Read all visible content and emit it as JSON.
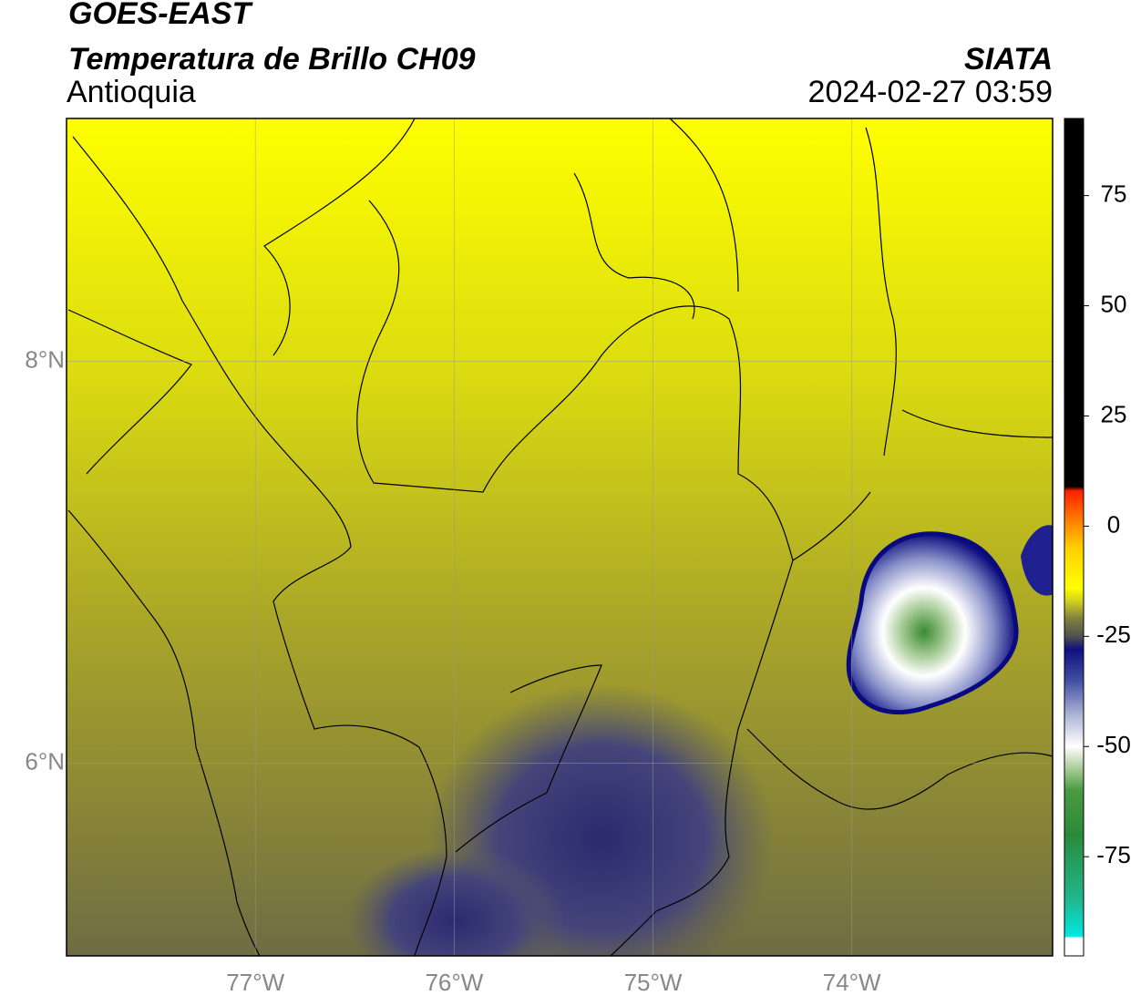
{
  "map": {
    "title": "GOES-EAST",
    "subtitle": "Temperatura de Brillo CH09",
    "region": "Antioquia",
    "source": "SIATA",
    "timestamp": "2024-02-27 03:59",
    "xlim": [
      -77.95,
      -72.99
    ],
    "ylim": [
      5.04,
      9.21
    ],
    "xticks": [
      {
        "value": -77,
        "label": "77°W"
      },
      {
        "value": -76,
        "label": "76°W"
      },
      {
        "value": -75,
        "label": "75°W"
      },
      {
        "value": -74,
        "label": "74°W"
      }
    ],
    "yticks": [
      {
        "value": 6,
        "label": "6°N"
      },
      {
        "value": 8,
        "label": "8°N"
      }
    ],
    "grid": true,
    "colorbar": {
      "lim": [
        -97.5,
        92.5
      ],
      "ticks": [
        -75,
        -50,
        -25,
        0,
        25,
        50,
        75
      ],
      "stops": [
        {
          "value": -97.5,
          "color": "#ffffff"
        },
        {
          "value": -93.5,
          "color": "#ffffff"
        },
        {
          "value": -93,
          "color": "#00e8e0"
        },
        {
          "value": -85,
          "color": "#20b890"
        },
        {
          "value": -70,
          "color": "#2a8a3a"
        },
        {
          "value": -60,
          "color": "#4a9a40"
        },
        {
          "value": -55,
          "color": "#a8cc98"
        },
        {
          "value": -50,
          "color": "#ffffff"
        },
        {
          "value": -43,
          "color": "#b0b6d8"
        },
        {
          "value": -35,
          "color": "#4050a0"
        },
        {
          "value": -28,
          "color": "#101080"
        },
        {
          "value": -25,
          "color": "#505050"
        },
        {
          "value": -21,
          "color": "#808040"
        },
        {
          "value": -17,
          "color": "#d0d020"
        },
        {
          "value": -14,
          "color": "#ffff00"
        },
        {
          "value": -5,
          "color": "#ffd000"
        },
        {
          "value": 0,
          "color": "#ff9000"
        },
        {
          "value": 8,
          "color": "#ff2000"
        },
        {
          "value": 9,
          "color": "#000000"
        },
        {
          "value": 92.5,
          "color": "#000000"
        }
      ]
    }
  }
}
